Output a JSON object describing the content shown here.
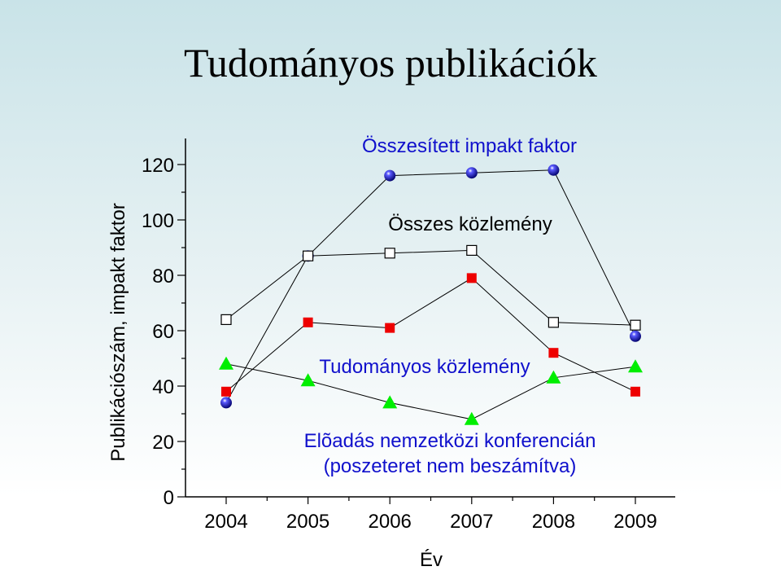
{
  "slide": {
    "title": "Tudományos publikációk",
    "background_top": "#c9e3e8",
    "background_bottom": "#ffffff"
  },
  "chart_data": {
    "type": "line",
    "xlabel": "Év",
    "ylabel": "Publikációszám, impakt faktor",
    "x": [
      2004,
      2005,
      2006,
      2007,
      2008,
      2009
    ],
    "ylim": [
      0,
      125
    ],
    "yticks": [
      0,
      20,
      40,
      60,
      80,
      100,
      120
    ],
    "series": [
      {
        "name": "Összesített impakt faktor",
        "label_lines": [
          "Összesített impakt faktor"
        ],
        "values": [
          34,
          87,
          116,
          117,
          118,
          58
        ],
        "marker": "circle",
        "color": "#1010dd",
        "label_color": "#1010cc"
      },
      {
        "name": "Összes közlemény",
        "label_lines": [
          "Összes közlemény"
        ],
        "values": [
          64,
          87,
          88,
          89,
          63,
          62
        ],
        "marker": "square-open",
        "color": "#000000",
        "label_color": "#000000"
      },
      {
        "name": "Tudományos közlemény",
        "label_lines": [
          "Tudományos közlemény"
        ],
        "values": [
          38,
          63,
          61,
          79,
          52,
          38
        ],
        "marker": "square",
        "color": "#ee0000",
        "label_color": "#1010cc"
      },
      {
        "name": "Elõadás nemzetközi konferencián (poszeteret nem beszámítva)",
        "label_lines": [
          "Elõadás nemzetközi konferencián",
          "(poszeteret nem beszámítva)"
        ],
        "values": [
          48,
          42,
          34,
          28,
          43,
          47
        ],
        "marker": "triangle",
        "color": "#00ee00",
        "label_color": "#1010cc"
      }
    ]
  }
}
